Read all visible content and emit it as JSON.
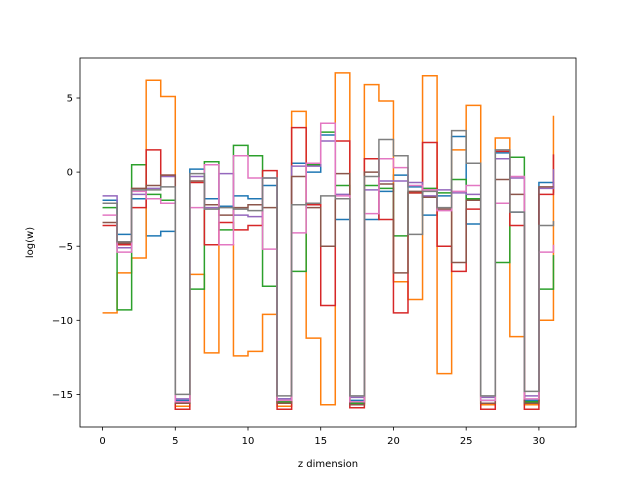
{
  "chart_data": {
    "type": "line",
    "drawstyle": "steps-post",
    "title": "",
    "xlabel": "z dimension",
    "ylabel": "log(w)",
    "xlim": [
      -1.55,
      32.55
    ],
    "ylim": [
      -17.2,
      7.7
    ],
    "xticks": [
      0,
      5,
      10,
      15,
      20,
      25,
      30
    ],
    "yticks": [
      5,
      0,
      -5,
      -10,
      -15
    ],
    "grid": false,
    "legend": "none",
    "series": [
      {
        "color": "#1f77b4",
        "values": [
          -1.9,
          -4.2,
          -1.8,
          -4.3,
          -4.0,
          -15.4,
          0.2,
          -1.8,
          -2.3,
          -1.6,
          -1.8,
          -0.9,
          -15.3,
          0.6,
          0.0,
          2.5,
          -3.2,
          -15.4,
          -3.2,
          -1.3,
          -0.2,
          -1.0,
          -2.9,
          -1.6,
          2.4,
          -3.5,
          -15.4,
          1.3,
          -2.7,
          -15.4,
          -0.7,
          -1.4
        ]
      },
      {
        "color": "#ff7f0e",
        "values": [
          -9.5,
          -6.8,
          -5.8,
          6.2,
          5.1,
          -15.8,
          -6.9,
          -12.2,
          -4.9,
          -12.4,
          -12.1,
          -9.6,
          -15.8,
          4.1,
          -11.2,
          -15.7,
          6.7,
          -15.7,
          5.9,
          4.8,
          -7.4,
          -8.6,
          6.5,
          -13.6,
          1.5,
          4.5,
          -15.7,
          2.3,
          -11.1,
          -15.7,
          -10.0,
          3.8
        ]
      },
      {
        "color": "#2ca02c",
        "values": [
          -2.4,
          -9.3,
          0.5,
          -1.5,
          -1.9,
          -15.6,
          -7.9,
          0.7,
          -3.9,
          1.8,
          1.1,
          -7.7,
          -15.5,
          -6.7,
          0.5,
          2.7,
          -0.9,
          -15.6,
          -0.9,
          -1.1,
          -4.3,
          -1.4,
          -1.1,
          -1.4,
          -0.5,
          -1.8,
          -15.6,
          -6.1,
          1.0,
          -15.5,
          -7.9,
          -5.6
        ]
      },
      {
        "color": "#d62728",
        "values": [
          -3.6,
          -4.9,
          -2.4,
          1.5,
          -0.2,
          -16.0,
          -0.7,
          -4.9,
          -3.4,
          -3.9,
          -3.6,
          0.1,
          -16.0,
          3.0,
          -2.2,
          -9.0,
          2.1,
          -15.9,
          0.9,
          -3.2,
          -9.5,
          -1.4,
          2.0,
          -5.0,
          -6.7,
          -2.5,
          -16.0,
          1.4,
          -3.6,
          -16.0,
          -1.5,
          1.2
        ]
      },
      {
        "color": "#9467bd",
        "values": [
          -1.6,
          -5.1,
          -1.5,
          -1.1,
          -0.3,
          -15.3,
          -0.3,
          -2.4,
          -0.1,
          -2.9,
          -3.0,
          -0.4,
          -15.3,
          0.4,
          0.4,
          2.1,
          -1.5,
          -15.2,
          -1.2,
          -0.6,
          -0.6,
          -0.7,
          -1.6,
          -1.2,
          -1.4,
          -1.5,
          -15.2,
          0.9,
          -0.4,
          -15.1,
          -1.1,
          0.2
        ]
      },
      {
        "color": "#8c564b",
        "values": [
          -3.4,
          -4.8,
          -1.1,
          -0.9,
          -0.2,
          -15.6,
          -0.6,
          -2.2,
          -2.9,
          -2.4,
          -2.2,
          -2.4,
          -15.6,
          -0.3,
          -2.4,
          -5.0,
          -0.1,
          -15.7,
          0.0,
          -0.8,
          -6.8,
          -1.3,
          -1.7,
          -2.5,
          -6.1,
          -1.9,
          -15.6,
          -0.5,
          -1.5,
          -15.6,
          -1.0,
          -1.0
        ]
      },
      {
        "color": "#e377c2",
        "values": [
          -2.9,
          -5.4,
          -1.3,
          -1.8,
          -2.1,
          -15.5,
          -2.4,
          0.5,
          -4.9,
          1.1,
          -0.4,
          -5.2,
          -15.4,
          -4.1,
          0.6,
          3.3,
          -1.6,
          -15.5,
          -2.8,
          0.9,
          0.3,
          -0.9,
          -1.2,
          -2.6,
          -1.3,
          -0.9,
          -15.4,
          -2.1,
          -0.3,
          -15.3,
          -5.4,
          -4.9
        ]
      },
      {
        "color": "#7f7f7f",
        "values": [
          -2.1,
          -4.7,
          -1.2,
          -1.2,
          -1.0,
          -15.0,
          -0.1,
          -2.5,
          -2.4,
          -2.5,
          -2.6,
          -0.4,
          -15.1,
          -2.2,
          -2.1,
          -1.6,
          -1.8,
          -15.1,
          -0.3,
          2.2,
          1.1,
          -4.2,
          -1.3,
          -2.4,
          2.8,
          0.6,
          -15.1,
          1.5,
          -2.7,
          -14.8,
          -3.6,
          -3.3
        ]
      }
    ]
  }
}
